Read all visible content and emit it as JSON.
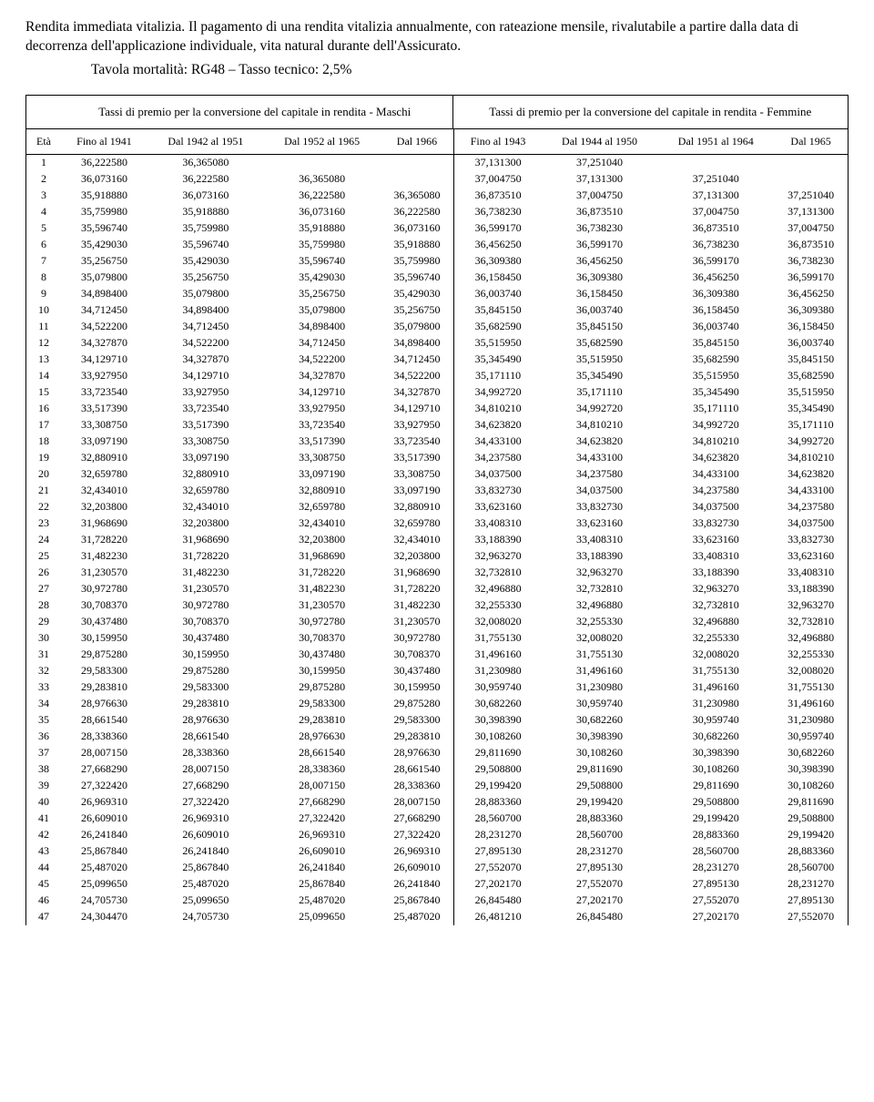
{
  "intro": "Rendita immediata vitalizia. Il pagamento di una rendita vitalizia annualmente, con rateazione mensile, rivalutabile a partire dalla data di decorrenza dell'applicazione individuale, vita natural durante dell'Assicurato.",
  "tavola": "Tavola mortalità: RG48 – Tasso tecnico: 2,5%",
  "group_headers": {
    "maschi": "Tassi di premio per la conversione del capitale in rendita - Maschi",
    "femmine": "Tassi di premio per la conversione del capitale in rendita - Femmine"
  },
  "columns": {
    "eta": "Età",
    "m": [
      "Fino al 1941",
      "Dal 1942 al 1951",
      "Dal 1952 al 1965",
      "Dal 1966"
    ],
    "f": [
      "Fino al 1943",
      "Dal 1944 al 1950",
      "Dal 1951 al 1964",
      "Dal 1965"
    ]
  },
  "rows": [
    {
      "eta": 1,
      "m": [
        "36,222580",
        "36,365080",
        "",
        ""
      ],
      "f": [
        "37,131300",
        "37,251040",
        "",
        ""
      ]
    },
    {
      "eta": 2,
      "m": [
        "36,073160",
        "36,222580",
        "36,365080",
        ""
      ],
      "f": [
        "37,004750",
        "37,131300",
        "37,251040",
        ""
      ]
    },
    {
      "eta": 3,
      "m": [
        "35,918880",
        "36,073160",
        "36,222580",
        "36,365080"
      ],
      "f": [
        "36,873510",
        "37,004750",
        "37,131300",
        "37,251040"
      ]
    },
    {
      "eta": 4,
      "m": [
        "35,759980",
        "35,918880",
        "36,073160",
        "36,222580"
      ],
      "f": [
        "36,738230",
        "36,873510",
        "37,004750",
        "37,131300"
      ]
    },
    {
      "eta": 5,
      "m": [
        "35,596740",
        "35,759980",
        "35,918880",
        "36,073160"
      ],
      "f": [
        "36,599170",
        "36,738230",
        "36,873510",
        "37,004750"
      ]
    },
    {
      "eta": 6,
      "m": [
        "35,429030",
        "35,596740",
        "35,759980",
        "35,918880"
      ],
      "f": [
        "36,456250",
        "36,599170",
        "36,738230",
        "36,873510"
      ]
    },
    {
      "eta": 7,
      "m": [
        "35,256750",
        "35,429030",
        "35,596740",
        "35,759980"
      ],
      "f": [
        "36,309380",
        "36,456250",
        "36,599170",
        "36,738230"
      ]
    },
    {
      "eta": 8,
      "m": [
        "35,079800",
        "35,256750",
        "35,429030",
        "35,596740"
      ],
      "f": [
        "36,158450",
        "36,309380",
        "36,456250",
        "36,599170"
      ]
    },
    {
      "eta": 9,
      "m": [
        "34,898400",
        "35,079800",
        "35,256750",
        "35,429030"
      ],
      "f": [
        "36,003740",
        "36,158450",
        "36,309380",
        "36,456250"
      ]
    },
    {
      "eta": 10,
      "m": [
        "34,712450",
        "34,898400",
        "35,079800",
        "35,256750"
      ],
      "f": [
        "35,845150",
        "36,003740",
        "36,158450",
        "36,309380"
      ]
    },
    {
      "eta": 11,
      "m": [
        "34,522200",
        "34,712450",
        "34,898400",
        "35,079800"
      ],
      "f": [
        "35,682590",
        "35,845150",
        "36,003740",
        "36,158450"
      ]
    },
    {
      "eta": 12,
      "m": [
        "34,327870",
        "34,522200",
        "34,712450",
        "34,898400"
      ],
      "f": [
        "35,515950",
        "35,682590",
        "35,845150",
        "36,003740"
      ]
    },
    {
      "eta": 13,
      "m": [
        "34,129710",
        "34,327870",
        "34,522200",
        "34,712450"
      ],
      "f": [
        "35,345490",
        "35,515950",
        "35,682590",
        "35,845150"
      ]
    },
    {
      "eta": 14,
      "m": [
        "33,927950",
        "34,129710",
        "34,327870",
        "34,522200"
      ],
      "f": [
        "35,171110",
        "35,345490",
        "35,515950",
        "35,682590"
      ]
    },
    {
      "eta": 15,
      "m": [
        "33,723540",
        "33,927950",
        "34,129710",
        "34,327870"
      ],
      "f": [
        "34,992720",
        "35,171110",
        "35,345490",
        "35,515950"
      ]
    },
    {
      "eta": 16,
      "m": [
        "33,517390",
        "33,723540",
        "33,927950",
        "34,129710"
      ],
      "f": [
        "34,810210",
        "34,992720",
        "35,171110",
        "35,345490"
      ]
    },
    {
      "eta": 17,
      "m": [
        "33,308750",
        "33,517390",
        "33,723540",
        "33,927950"
      ],
      "f": [
        "34,623820",
        "34,810210",
        "34,992720",
        "35,171110"
      ]
    },
    {
      "eta": 18,
      "m": [
        "33,097190",
        "33,308750",
        "33,517390",
        "33,723540"
      ],
      "f": [
        "34,433100",
        "34,623820",
        "34,810210",
        "34,992720"
      ]
    },
    {
      "eta": 19,
      "m": [
        "32,880910",
        "33,097190",
        "33,308750",
        "33,517390"
      ],
      "f": [
        "34,237580",
        "34,433100",
        "34,623820",
        "34,810210"
      ]
    },
    {
      "eta": 20,
      "m": [
        "32,659780",
        "32,880910",
        "33,097190",
        "33,308750"
      ],
      "f": [
        "34,037500",
        "34,237580",
        "34,433100",
        "34,623820"
      ]
    },
    {
      "eta": 21,
      "m": [
        "32,434010",
        "32,659780",
        "32,880910",
        "33,097190"
      ],
      "f": [
        "33,832730",
        "34,037500",
        "34,237580",
        "34,433100"
      ]
    },
    {
      "eta": 22,
      "m": [
        "32,203800",
        "32,434010",
        "32,659780",
        "32,880910"
      ],
      "f": [
        "33,623160",
        "33,832730",
        "34,037500",
        "34,237580"
      ]
    },
    {
      "eta": 23,
      "m": [
        "31,968690",
        "32,203800",
        "32,434010",
        "32,659780"
      ],
      "f": [
        "33,408310",
        "33,623160",
        "33,832730",
        "34,037500"
      ]
    },
    {
      "eta": 24,
      "m": [
        "31,728220",
        "31,968690",
        "32,203800",
        "32,434010"
      ],
      "f": [
        "33,188390",
        "33,408310",
        "33,623160",
        "33,832730"
      ]
    },
    {
      "eta": 25,
      "m": [
        "31,482230",
        "31,728220",
        "31,968690",
        "32,203800"
      ],
      "f": [
        "32,963270",
        "33,188390",
        "33,408310",
        "33,623160"
      ]
    },
    {
      "eta": 26,
      "m": [
        "31,230570",
        "31,482230",
        "31,728220",
        "31,968690"
      ],
      "f": [
        "32,732810",
        "32,963270",
        "33,188390",
        "33,408310"
      ]
    },
    {
      "eta": 27,
      "m": [
        "30,972780",
        "31,230570",
        "31,482230",
        "31,728220"
      ],
      "f": [
        "32,496880",
        "32,732810",
        "32,963270",
        "33,188390"
      ]
    },
    {
      "eta": 28,
      "m": [
        "30,708370",
        "30,972780",
        "31,230570",
        "31,482230"
      ],
      "f": [
        "32,255330",
        "32,496880",
        "32,732810",
        "32,963270"
      ]
    },
    {
      "eta": 29,
      "m": [
        "30,437480",
        "30,708370",
        "30,972780",
        "31,230570"
      ],
      "f": [
        "32,008020",
        "32,255330",
        "32,496880",
        "32,732810"
      ]
    },
    {
      "eta": 30,
      "m": [
        "30,159950",
        "30,437480",
        "30,708370",
        "30,972780"
      ],
      "f": [
        "31,755130",
        "32,008020",
        "32,255330",
        "32,496880"
      ]
    },
    {
      "eta": 31,
      "m": [
        "29,875280",
        "30,159950",
        "30,437480",
        "30,708370"
      ],
      "f": [
        "31,496160",
        "31,755130",
        "32,008020",
        "32,255330"
      ]
    },
    {
      "eta": 32,
      "m": [
        "29,583300",
        "29,875280",
        "30,159950",
        "30,437480"
      ],
      "f": [
        "31,230980",
        "31,496160",
        "31,755130",
        "32,008020"
      ]
    },
    {
      "eta": 33,
      "m": [
        "29,283810",
        "29,583300",
        "29,875280",
        "30,159950"
      ],
      "f": [
        "30,959740",
        "31,230980",
        "31,496160",
        "31,755130"
      ]
    },
    {
      "eta": 34,
      "m": [
        "28,976630",
        "29,283810",
        "29,583300",
        "29,875280"
      ],
      "f": [
        "30,682260",
        "30,959740",
        "31,230980",
        "31,496160"
      ]
    },
    {
      "eta": 35,
      "m": [
        "28,661540",
        "28,976630",
        "29,283810",
        "29,583300"
      ],
      "f": [
        "30,398390",
        "30,682260",
        "30,959740",
        "31,230980"
      ]
    },
    {
      "eta": 36,
      "m": [
        "28,338360",
        "28,661540",
        "28,976630",
        "29,283810"
      ],
      "f": [
        "30,108260",
        "30,398390",
        "30,682260",
        "30,959740"
      ]
    },
    {
      "eta": 37,
      "m": [
        "28,007150",
        "28,338360",
        "28,661540",
        "28,976630"
      ],
      "f": [
        "29,811690",
        "30,108260",
        "30,398390",
        "30,682260"
      ]
    },
    {
      "eta": 38,
      "m": [
        "27,668290",
        "28,007150",
        "28,338360",
        "28,661540"
      ],
      "f": [
        "29,508800",
        "29,811690",
        "30,108260",
        "30,398390"
      ]
    },
    {
      "eta": 39,
      "m": [
        "27,322420",
        "27,668290",
        "28,007150",
        "28,338360"
      ],
      "f": [
        "29,199420",
        "29,508800",
        "29,811690",
        "30,108260"
      ]
    },
    {
      "eta": 40,
      "m": [
        "26,969310",
        "27,322420",
        "27,668290",
        "28,007150"
      ],
      "f": [
        "28,883360",
        "29,199420",
        "29,508800",
        "29,811690"
      ]
    },
    {
      "eta": 41,
      "m": [
        "26,609010",
        "26,969310",
        "27,322420",
        "27,668290"
      ],
      "f": [
        "28,560700",
        "28,883360",
        "29,199420",
        "29,508800"
      ]
    },
    {
      "eta": 42,
      "m": [
        "26,241840",
        "26,609010",
        "26,969310",
        "27,322420"
      ],
      "f": [
        "28,231270",
        "28,560700",
        "28,883360",
        "29,199420"
      ]
    },
    {
      "eta": 43,
      "m": [
        "25,867840",
        "26,241840",
        "26,609010",
        "26,969310"
      ],
      "f": [
        "27,895130",
        "28,231270",
        "28,560700",
        "28,883360"
      ]
    },
    {
      "eta": 44,
      "m": [
        "25,487020",
        "25,867840",
        "26,241840",
        "26,609010"
      ],
      "f": [
        "27,552070",
        "27,895130",
        "28,231270",
        "28,560700"
      ]
    },
    {
      "eta": 45,
      "m": [
        "25,099650",
        "25,487020",
        "25,867840",
        "26,241840"
      ],
      "f": [
        "27,202170",
        "27,552070",
        "27,895130",
        "28,231270"
      ]
    },
    {
      "eta": 46,
      "m": [
        "24,705730",
        "25,099650",
        "25,487020",
        "25,867840"
      ],
      "f": [
        "26,845480",
        "27,202170",
        "27,552070",
        "27,895130"
      ]
    },
    {
      "eta": 47,
      "m": [
        "24,304470",
        "24,705730",
        "25,099650",
        "25,487020"
      ],
      "f": [
        "26,481210",
        "26,845480",
        "27,202170",
        "27,552070"
      ]
    }
  ]
}
